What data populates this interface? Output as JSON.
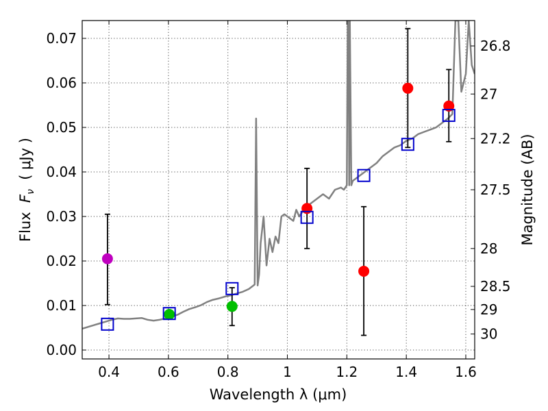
{
  "chart_data": {
    "type": "scatter",
    "xlabel": "Wavelength  λ (μm)",
    "ylabel_prefix": "Flux  ",
    "ylabel_symbol": "F",
    "ylabel_subscript": "ν",
    "ylabel_suffix": "  ( μJy )",
    "y2label": "Magnitude (AB)",
    "xlim": [
      0.31,
      1.63
    ],
    "ylim": [
      -0.002,
      0.074
    ],
    "grid": true,
    "x_ticks": [
      0.4,
      0.6,
      0.8,
      1.0,
      1.2,
      1.4,
      1.6
    ],
    "x_tick_labels": [
      "0.4",
      "0.6",
      "0.8",
      "1",
      "1.2",
      "1.4",
      "1.6"
    ],
    "y_ticks": [
      0.0,
      0.01,
      0.02,
      0.03,
      0.04,
      0.05,
      0.06,
      0.07
    ],
    "y_tick_labels": [
      "0.00",
      "0.01",
      "0.02",
      "0.03",
      "0.04",
      "0.05",
      "0.06",
      "0.07"
    ],
    "magnitude_ticks": [
      {
        "label": "26.8",
        "flux": 0.0683
      },
      {
        "label": "27",
        "flux": 0.0575
      },
      {
        "label": "27.2",
        "flux": 0.0475
      },
      {
        "label": "27.5",
        "flux": 0.036
      },
      {
        "label": "28",
        "flux": 0.0228
      },
      {
        "label": "28.5",
        "flux": 0.0143
      },
      {
        "label": "29",
        "flux": 0.0091
      },
      {
        "label": "30",
        "flux": 0.0036
      }
    ],
    "template_spectrum": {
      "color": "#808080",
      "x": [
        0.31,
        0.33,
        0.35,
        0.37,
        0.39,
        0.41,
        0.43,
        0.45,
        0.47,
        0.49,
        0.51,
        0.53,
        0.55,
        0.57,
        0.59,
        0.61,
        0.63,
        0.65,
        0.67,
        0.69,
        0.71,
        0.73,
        0.75,
        0.77,
        0.79,
        0.81,
        0.83,
        0.85,
        0.87,
        0.88,
        0.89,
        0.895,
        0.9,
        0.905,
        0.91,
        0.92,
        0.93,
        0.94,
        0.95,
        0.96,
        0.97,
        0.98,
        0.99,
        1.0,
        1.01,
        1.02,
        1.03,
        1.04,
        1.05,
        1.06,
        1.08,
        1.1,
        1.12,
        1.14,
        1.16,
        1.18,
        1.19,
        1.2,
        1.203,
        1.206,
        1.208,
        1.21,
        1.215,
        1.22,
        1.24,
        1.26,
        1.28,
        1.3,
        1.32,
        1.34,
        1.36,
        1.38,
        1.4,
        1.42,
        1.44,
        1.46,
        1.48,
        1.5,
        1.52,
        1.54,
        1.555,
        1.565,
        1.575,
        1.585,
        1.6,
        1.61,
        1.62,
        1.63
      ],
      "y": [
        0.0048,
        0.0052,
        0.0056,
        0.006,
        0.0064,
        0.0068,
        0.0071,
        0.007,
        0.007,
        0.0071,
        0.0072,
        0.0068,
        0.0066,
        0.0068,
        0.0071,
        0.0075,
        0.0079,
        0.0086,
        0.0092,
        0.0096,
        0.0101,
        0.0108,
        0.0113,
        0.0116,
        0.012,
        0.0123,
        0.0127,
        0.0131,
        0.0137,
        0.0142,
        0.0147,
        0.052,
        0.0145,
        0.017,
        0.024,
        0.03,
        0.019,
        0.025,
        0.022,
        0.0255,
        0.024,
        0.03,
        0.0305,
        0.03,
        0.0295,
        0.029,
        0.0315,
        0.03,
        0.031,
        0.032,
        0.033,
        0.034,
        0.035,
        0.034,
        0.036,
        0.0365,
        0.036,
        0.037,
        0.074,
        0.074,
        0.037,
        0.074,
        0.037,
        0.038,
        0.039,
        0.04,
        0.041,
        0.042,
        0.0435,
        0.0445,
        0.0455,
        0.046,
        0.047,
        0.0475,
        0.0485,
        0.049,
        0.0495,
        0.05,
        0.051,
        0.052,
        0.053,
        0.074,
        0.074,
        0.058,
        0.062,
        0.074,
        0.064,
        0.062
      ]
    },
    "model_photometry": {
      "marker": "open-square",
      "color": "#0000cc",
      "points": [
        {
          "x": 0.395,
          "y": 0.0058
        },
        {
          "x": 0.603,
          "y": 0.0082
        },
        {
          "x": 0.814,
          "y": 0.0138
        },
        {
          "x": 1.066,
          "y": 0.0298
        },
        {
          "x": 1.257,
          "y": 0.0392
        },
        {
          "x": 1.405,
          "y": 0.0462
        },
        {
          "x": 1.543,
          "y": 0.0527
        }
      ]
    },
    "observed": {
      "marker": "filled-circle",
      "points": [
        {
          "x": 0.395,
          "y": 0.0205,
          "err_lo": 0.0102,
          "err_hi": 0.0305,
          "color": "#bf00bf"
        },
        {
          "x": 0.603,
          "y": 0.008,
          "color": "#00bf00"
        },
        {
          "x": 0.814,
          "y": 0.0098,
          "err_lo": 0.0055,
          "err_hi": 0.014,
          "color": "#00bf00"
        },
        {
          "x": 1.066,
          "y": 0.0318,
          "err_lo": 0.0228,
          "err_hi": 0.0408,
          "color": "#ff0000"
        },
        {
          "x": 1.257,
          "y": 0.0177,
          "err_lo": 0.0033,
          "err_hi": 0.0322,
          "color": "#ff0000"
        },
        {
          "x": 1.405,
          "y": 0.0588,
          "err_lo": 0.0455,
          "err_hi": 0.0722,
          "color": "#ff0000"
        },
        {
          "x": 1.543,
          "y": 0.0548,
          "err_lo": 0.0468,
          "err_hi": 0.063,
          "color": "#ff0000"
        }
      ]
    }
  }
}
